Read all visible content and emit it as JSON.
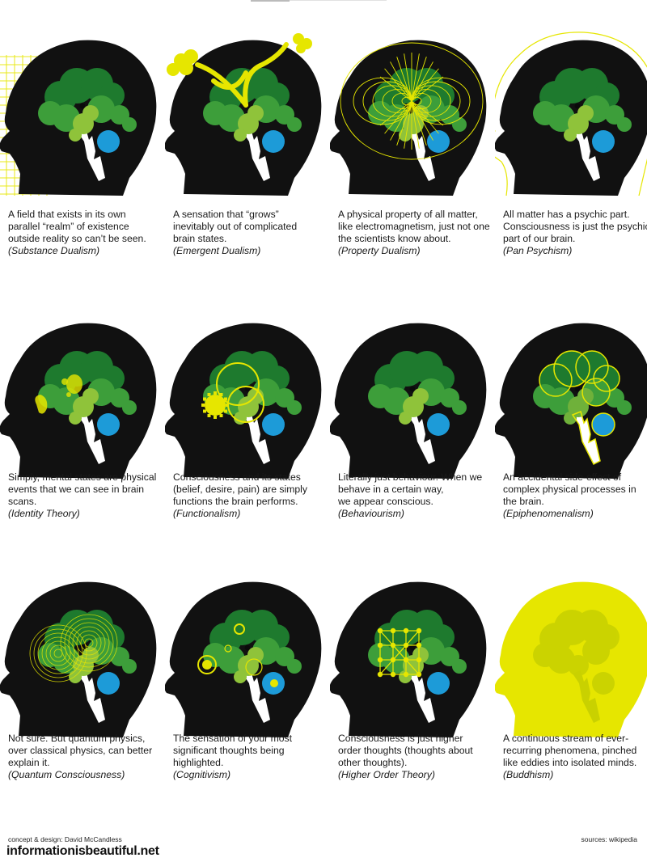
{
  "colors": {
    "head": "#111111",
    "brain_dark": "#1e7a2e",
    "brain_mid": "#3d9e3a",
    "brain_light": "#8fc33a",
    "eye_blue": "#1d9bd8",
    "highlight_yellow": "#e6e600"
  },
  "theories": [
    {
      "desc": "A field that exists in its own\nparallel “realm” of existence\noutside reality so can’t be seen.",
      "label": "(Substance Dualism)",
      "variant": "grid-field"
    },
    {
      "desc": "A sensation that “grows”\ninevitably out of complicated\nbrain states.",
      "label": "(Emergent Dualism)",
      "variant": "flower-growth"
    },
    {
      "desc": "A physical property of all matter,\nlike electromagnetism, just not one\nthe scientists know about.",
      "label": "(Property Dualism)",
      "variant": "field-lines"
    },
    {
      "desc": "All matter has a psychic part.\nConsciousness is just the psychic\npart of our brain.",
      "label": "(Pan Psychism)",
      "variant": "outline-aura"
    },
    {
      "desc": "Simply, mental states are physical\nevents that we can see in brain\nscans.",
      "label": "(Identity Theory)",
      "variant": "scan-blobs"
    },
    {
      "desc": "Consciousness and its states\n(belief, desire, pain) are simply\nfunctions the brain performs.",
      "label": "(Functionalism)",
      "variant": "gears"
    },
    {
      "desc": "Literally just behaviour. When we\nbehave in a certain way,\nwe appear conscious.",
      "label": "(Behaviourism)",
      "variant": "plain"
    },
    {
      "desc": "An accidental side-effect of\ncomplex physical processes in\nthe brain.",
      "label": "(Epiphenomenalism)",
      "variant": "yellow-outline"
    },
    {
      "desc": "Not sure. But quantum physics,\nover classical physics, can better\nexplain it.",
      "label": "(Quantum Consciousness)",
      "variant": "ripples"
    },
    {
      "desc": "The sensation of your most\nsignificant thoughts being\nhighlighted.",
      "label": "(Cognitivism)",
      "variant": "highlights"
    },
    {
      "desc": "Consciousness is just higher\norder thoughts (thoughts about\nother thoughts).",
      "label": "(Higher Order Theory)",
      "variant": "network"
    },
    {
      "desc": "A continuous stream of ever-\nrecurring phenomena, pinched\nlike eddies into isolated minds.",
      "label": "(Buddhism)",
      "variant": "yellow-head"
    }
  ],
  "footer": {
    "credit": "concept & design: David McCandless",
    "brand": "informationisbeautiful.net",
    "sources": "sources: wikipedia"
  }
}
